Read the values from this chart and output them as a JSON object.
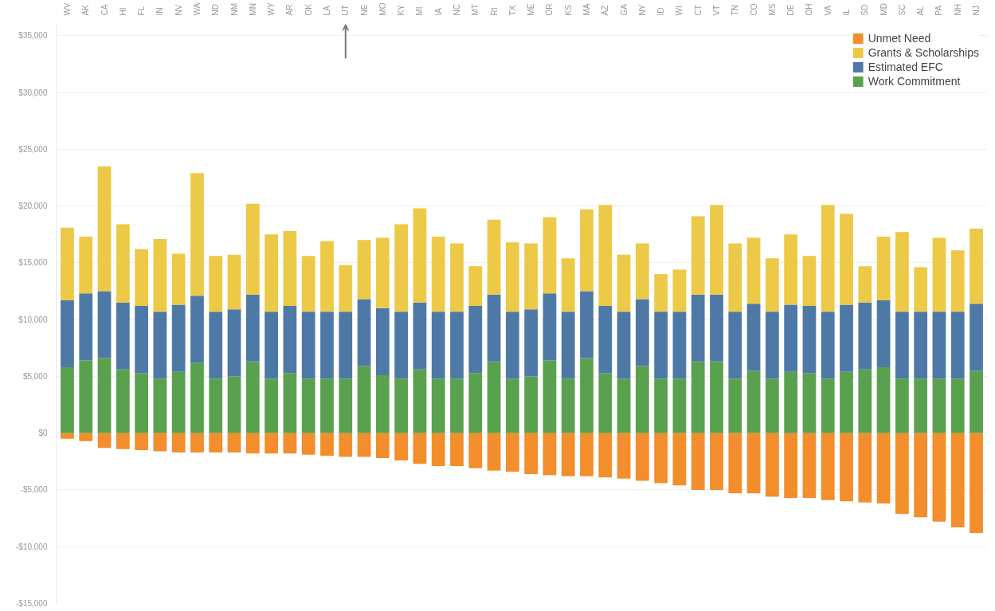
{
  "chart_data": {
    "type": "bar",
    "stacked": true,
    "categories": [
      "WV",
      "AK",
      "CA",
      "HI",
      "FL",
      "IN",
      "NV",
      "WA",
      "ND",
      "NM",
      "MN",
      "WY",
      "AR",
      "OK",
      "LA",
      "UT",
      "NE",
      "MO",
      "KY",
      "MI",
      "IA",
      "NC",
      "MT",
      "RI",
      "TX",
      "ME",
      "OR",
      "KS",
      "MA",
      "AZ",
      "GA",
      "NY",
      "ID",
      "WI",
      "CT",
      "VT",
      "TN",
      "CO",
      "MS",
      "DE",
      "OH",
      "VA",
      "IL",
      "SD",
      "MD",
      "SC",
      "AL",
      "PA",
      "NH",
      "NJ"
    ],
    "series": [
      {
        "name": "Work Commitment",
        "color": "#59a14f",
        "values": [
          5800,
          6400,
          6600,
          5600,
          5300,
          4800,
          5400,
          6200,
          4800,
          5000,
          6300,
          4800,
          5300,
          4800,
          4800,
          4800,
          5900,
          5100,
          4800,
          5600,
          4800,
          4800,
          5300,
          6300,
          4800,
          5000,
          6400,
          4800,
          6600,
          5300,
          4800,
          5900,
          4800,
          4800,
          6300,
          6300,
          4800,
          5500,
          4800,
          5400,
          5300,
          4800,
          5400,
          5600,
          5800,
          4800,
          4800,
          4800,
          4800,
          5500
        ]
      },
      {
        "name": "Estimated EFC",
        "color": "#4e79a7",
        "values": [
          5900,
          5900,
          5900,
          5900,
          5900,
          5900,
          5900,
          5900,
          5900,
          5900,
          5900,
          5900,
          5900,
          5900,
          5900,
          5900,
          5900,
          5900,
          5900,
          5900,
          5900,
          5900,
          5900,
          5900,
          5900,
          5900,
          5900,
          5900,
          5900,
          5900,
          5900,
          5900,
          5900,
          5900,
          5900,
          5900,
          5900,
          5900,
          5900,
          5900,
          5900,
          5900,
          5900,
          5900,
          5900,
          5900,
          5900,
          5900,
          5900,
          5900
        ]
      },
      {
        "name": "Grants & Scholarships",
        "color": "#edc948",
        "values": [
          6400,
          5000,
          11000,
          6900,
          5000,
          6400,
          4500,
          10800,
          4900,
          4800,
          8000,
          6800,
          6600,
          4900,
          6200,
          4100,
          5200,
          6200,
          7700,
          8300,
          6600,
          6000,
          3500,
          6600,
          6100,
          5800,
          6700,
          4700,
          7200,
          8900,
          5000,
          4900,
          3300,
          3700,
          6900,
          7900,
          6000,
          5800,
          4700,
          6200,
          4400,
          9400,
          8000,
          3200,
          5600,
          7000,
          3900,
          6500,
          5400,
          6600
        ]
      },
      {
        "name": "Unmet Need",
        "color": "#f28e2b",
        "values": [
          -500,
          -700,
          -1300,
          -1400,
          -1500,
          -1600,
          -1700,
          -1700,
          -1700,
          -1700,
          -1800,
          -1800,
          -1800,
          -1900,
          -2000,
          -2100,
          -2100,
          -2200,
          -2400,
          -2700,
          -2900,
          -2900,
          -3100,
          -3300,
          -3400,
          -3600,
          -3700,
          -3800,
          -3800,
          -3900,
          -4000,
          -4200,
          -4400,
          -4600,
          -5000,
          -5000,
          -5300,
          -5300,
          -5600,
          -5700,
          -5700,
          -5900,
          -6000,
          -6100,
          -6200,
          -7100,
          -7400,
          -7800,
          -8300,
          -8800
        ]
      }
    ],
    "ylim": [
      -15000,
      36000
    ],
    "yticks": [
      {
        "value": -15000,
        "label": "-$15,000"
      },
      {
        "value": -10000,
        "label": "-$10,000"
      },
      {
        "value": -5000,
        "label": "-$5,000"
      },
      {
        "value": 0,
        "label": "$0"
      },
      {
        "value": 5000,
        "label": "$5,000"
      },
      {
        "value": 10000,
        "label": "$10,000"
      },
      {
        "value": 15000,
        "label": "$15,000"
      },
      {
        "value": 20000,
        "label": "$20,000"
      },
      {
        "value": 25000,
        "label": "$25,000"
      },
      {
        "value": 30000,
        "label": "$30,000"
      },
      {
        "value": 35000,
        "label": "$35,000"
      }
    ],
    "grid": "y",
    "legend": "top right"
  }
}
